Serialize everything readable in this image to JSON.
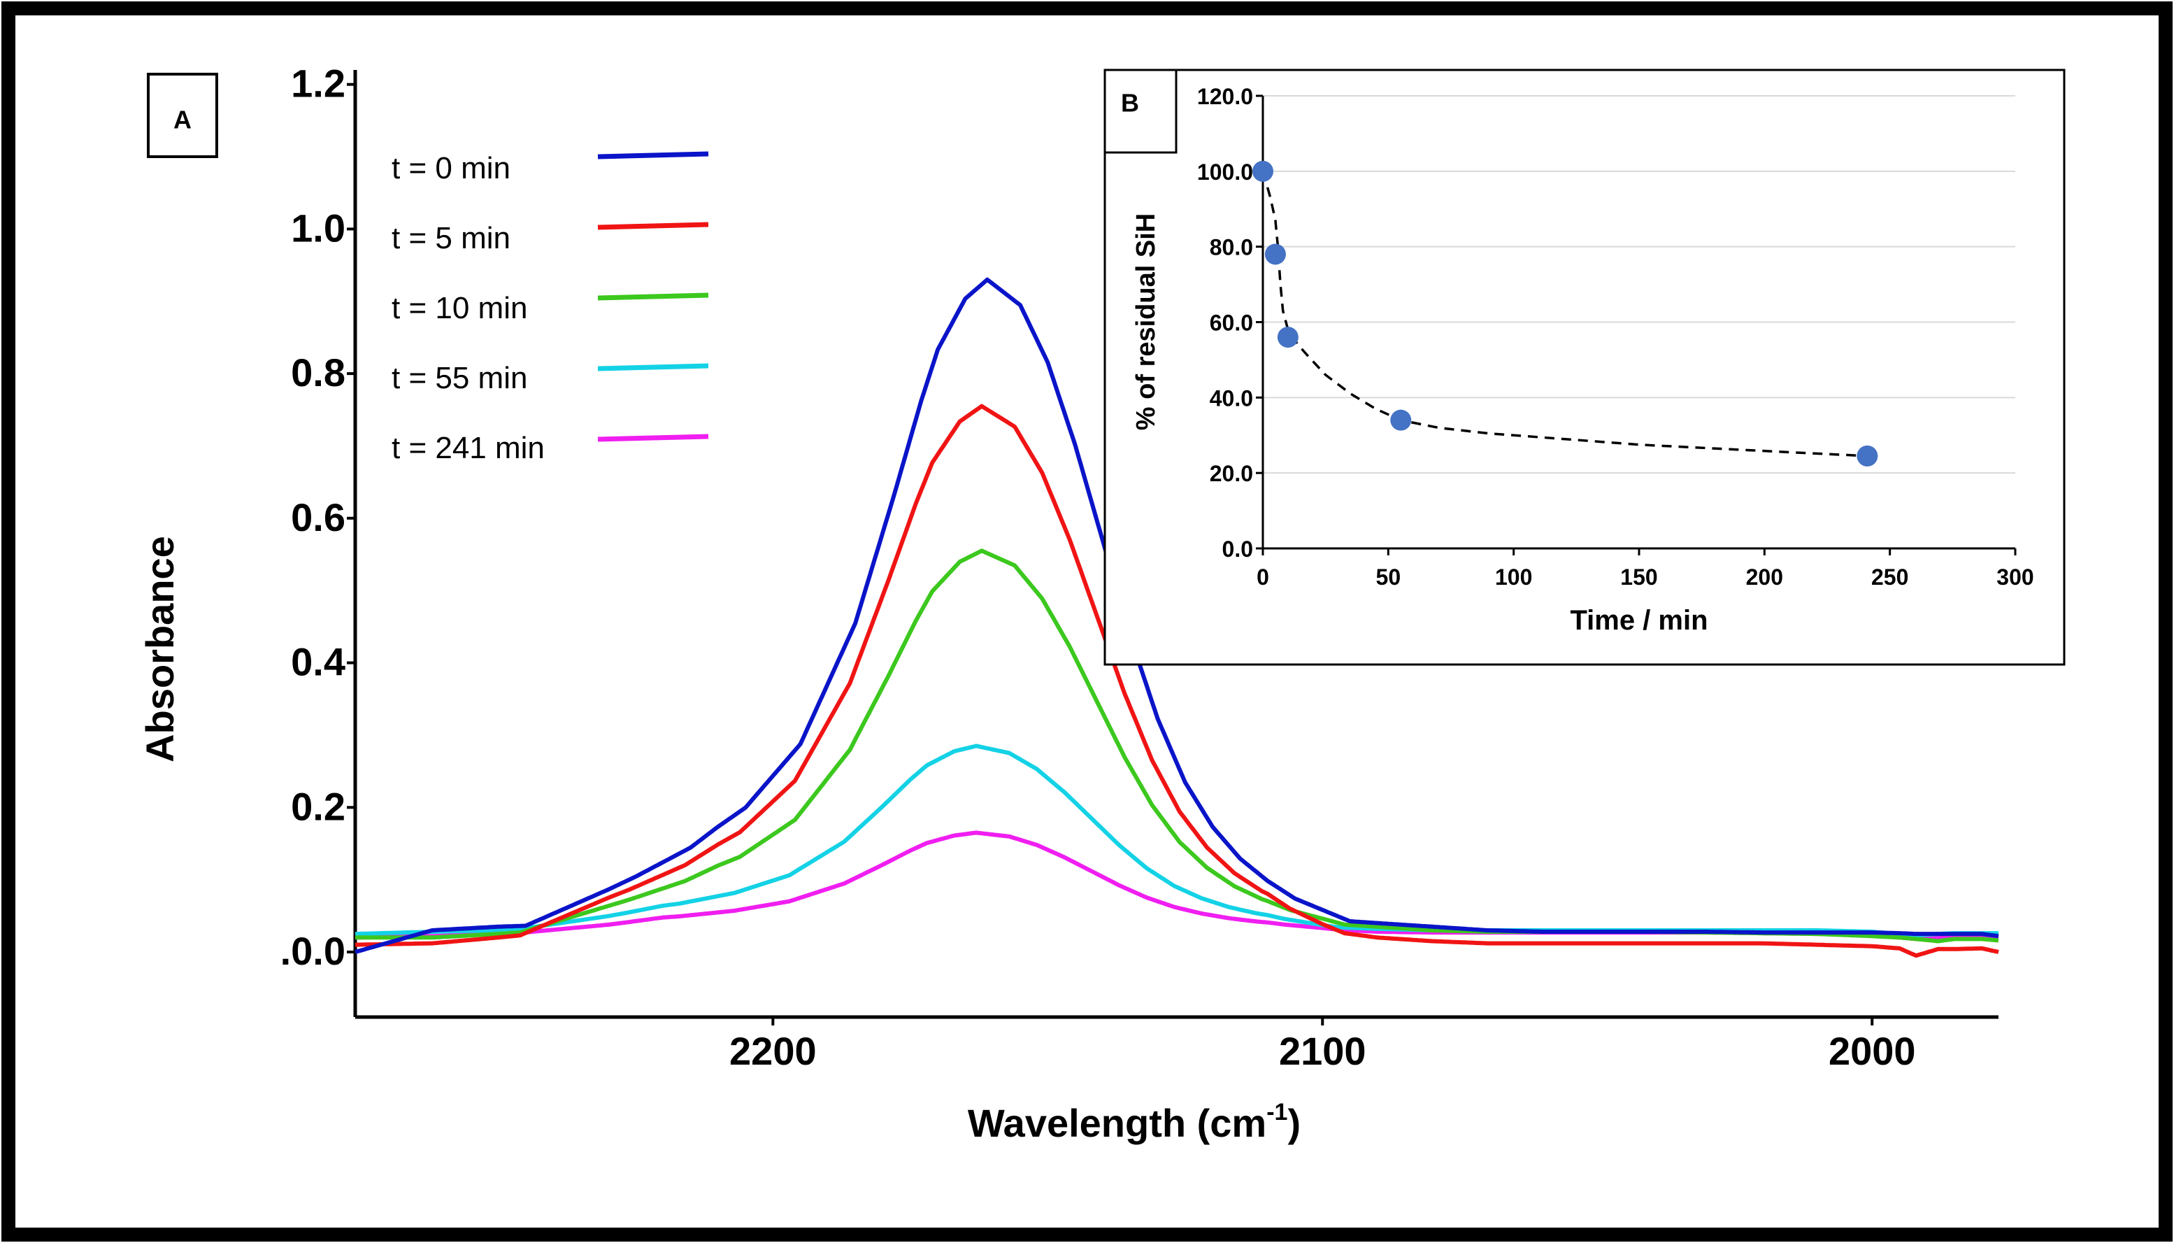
{
  "figure": {
    "colors": {
      "frame": "#000000",
      "axis": "#000000",
      "grid": "#d9d9d9",
      "points": "#4472c4",
      "fit": "#000000"
    }
  },
  "chart_data": [
    {
      "id": "A",
      "panel_label": "A",
      "type": "line",
      "title": "",
      "xlabel_main": "Wavelength (cm",
      "xlabel_sup": "-1",
      "xlabel_end": ")",
      "ylabel": "Absorbance",
      "xlim": [
        2276,
        1977
      ],
      "ylim": [
        -0.09,
        1.22
      ],
      "x_ticks": [
        2200,
        2100,
        2000
      ],
      "x_tick_labels": [
        "2200",
        "2100",
        "2000"
      ],
      "y_ticks": [
        0.0,
        0.2,
        0.4,
        0.6,
        0.8,
        1.0,
        1.2
      ],
      "y_tick_labels": [
        ".0.0",
        "0.2",
        "0.4",
        "0.6",
        "0.8",
        "1.0",
        "1.2"
      ],
      "peak_profile": {
        "x": [
          2276,
          2262,
          2250,
          2230,
          2220,
          2210,
          2200,
          2190,
          2183,
          2178,
          2175,
          2170,
          2166,
          2160,
          2155,
          2150,
          2145,
          2140,
          2135,
          2130,
          2125,
          2120,
          2115,
          2110,
          2100,
          2090,
          2080,
          2070,
          2060,
          2050,
          2040,
          2030,
          2020,
          2010,
          2000,
          1995,
          1992,
          1988,
          1985,
          1980,
          1977
        ],
        "shape": [
          0.0,
          0.0,
          0.0,
          0.07,
          0.11,
          0.17,
          0.27,
          0.46,
          0.66,
          0.81,
          0.89,
          0.97,
          1.0,
          0.96,
          0.87,
          0.74,
          0.59,
          0.44,
          0.31,
          0.21,
          0.14,
          0.09,
          0.055,
          0.03,
          0.0,
          0.0,
          0.0,
          0.0,
          0.0,
          0.0,
          0.0,
          0.0,
          0.0,
          0.0,
          0.0,
          0.0,
          0.0,
          0.0,
          0.0,
          0.0,
          0.0
        ]
      },
      "series": [
        {
          "name": "t = 0 min",
          "color": "#0a14c8",
          "peak": 0.88,
          "x_shift": 5,
          "baseline": [
            0.0,
            0.03,
            0.035,
            0.04,
            0.045,
            0.05,
            0.05,
            0.05,
            0.05,
            0.05,
            0.05,
            0.05,
            0.05,
            0.05,
            0.05,
            0.05,
            0.05,
            0.05,
            0.05,
            0.05,
            0.05,
            0.05,
            0.05,
            0.05,
            0.045,
            0.04,
            0.035,
            0.03,
            0.028,
            0.028,
            0.028,
            0.028,
            0.027,
            0.027,
            0.027,
            0.026,
            0.025,
            0.025,
            0.025,
            0.025,
            0.022
          ]
        },
        {
          "name": "t = 5 min",
          "color": "#f01414",
          "peak": 0.71,
          "x_shift": 4,
          "baseline": [
            0.01,
            0.012,
            0.02,
            0.035,
            0.04,
            0.045,
            0.045,
            0.045,
            0.045,
            0.045,
            0.045,
            0.045,
            0.045,
            0.045,
            0.045,
            0.045,
            0.045,
            0.045,
            0.045,
            0.045,
            0.045,
            0.045,
            0.045,
            0.045,
            0.03,
            0.02,
            0.015,
            0.012,
            0.012,
            0.012,
            0.012,
            0.012,
            0.012,
            0.01,
            0.008,
            0.005,
            -0.005,
            0.004,
            0.004,
            0.005,
            0.0
          ]
        },
        {
          "name": "t = 10 min",
          "color": "#3cc81e",
          "peak": 0.51,
          "x_shift": 4,
          "baseline": [
            0.02,
            0.02,
            0.025,
            0.035,
            0.04,
            0.045,
            0.045,
            0.045,
            0.045,
            0.045,
            0.045,
            0.045,
            0.045,
            0.045,
            0.045,
            0.045,
            0.045,
            0.045,
            0.045,
            0.045,
            0.045,
            0.045,
            0.045,
            0.045,
            0.04,
            0.035,
            0.03,
            0.028,
            0.028,
            0.028,
            0.028,
            0.027,
            0.026,
            0.025,
            0.022,
            0.02,
            0.018,
            0.015,
            0.018,
            0.018,
            0.016
          ]
        },
        {
          "name": "t = 55 min",
          "color": "#14d2e6",
          "peak": 0.245,
          "x_shift": 3,
          "baseline": [
            0.025,
            0.028,
            0.03,
            0.035,
            0.04,
            0.04,
            0.04,
            0.04,
            0.04,
            0.04,
            0.04,
            0.04,
            0.04,
            0.04,
            0.04,
            0.04,
            0.04,
            0.04,
            0.04,
            0.04,
            0.04,
            0.04,
            0.04,
            0.04,
            0.035,
            0.032,
            0.03,
            0.03,
            0.03,
            0.03,
            0.03,
            0.03,
            0.03,
            0.03,
            0.028,
            0.025,
            0.023,
            0.025,
            0.026,
            0.026,
            0.026
          ]
        },
        {
          "name": "t = 241 min",
          "color": "#f01ef0",
          "peak": 0.13,
          "x_shift": 3,
          "baseline": [
            0.02,
            0.022,
            0.025,
            0.03,
            0.035,
            0.035,
            0.035,
            0.035,
            0.035,
            0.035,
            0.035,
            0.035,
            0.035,
            0.035,
            0.035,
            0.035,
            0.035,
            0.035,
            0.035,
            0.035,
            0.035,
            0.035,
            0.035,
            0.035,
            0.032,
            0.028,
            0.027,
            0.027,
            0.027,
            0.027,
            0.027,
            0.027,
            0.026,
            0.025,
            0.023,
            0.02,
            0.018,
            0.02,
            0.02,
            0.02,
            0.02
          ]
        }
      ]
    },
    {
      "id": "B",
      "panel_label": "B",
      "type": "scatter",
      "title": "",
      "xlabel": "Time / min",
      "ylabel": "% of residual SiH",
      "xlim": [
        0,
        300
      ],
      "ylim": [
        0,
        120
      ],
      "x_ticks": [
        0,
        50,
        100,
        150,
        200,
        250,
        300
      ],
      "x_tick_labels": [
        "0",
        "50",
        "100",
        "150",
        "200",
        "250",
        "300"
      ],
      "y_ticks": [
        0,
        20,
        40,
        60,
        80,
        100,
        120
      ],
      "y_tick_labels": [
        "0.0",
        "20.0",
        "40.0",
        "60.0",
        "80.0",
        "100.0",
        "120.0"
      ],
      "grid": true,
      "points": {
        "x": [
          0,
          5,
          10,
          55,
          241
        ],
        "y": [
          100.0,
          78.0,
          56.0,
          34.0,
          24.5
        ]
      },
      "fit_curve": {
        "style": "dashed",
        "x": [
          0,
          3,
          5,
          6,
          7,
          8,
          10,
          14,
          18,
          25,
          35,
          45,
          55,
          70,
          90,
          120,
          150,
          180,
          210,
          241
        ],
        "y": [
          100,
          93,
          87,
          80,
          70,
          63,
          58,
          54,
          51,
          46,
          41,
          37,
          34,
          32,
          30.5,
          29,
          27.5,
          26.5,
          25.5,
          24.5
        ]
      }
    }
  ]
}
